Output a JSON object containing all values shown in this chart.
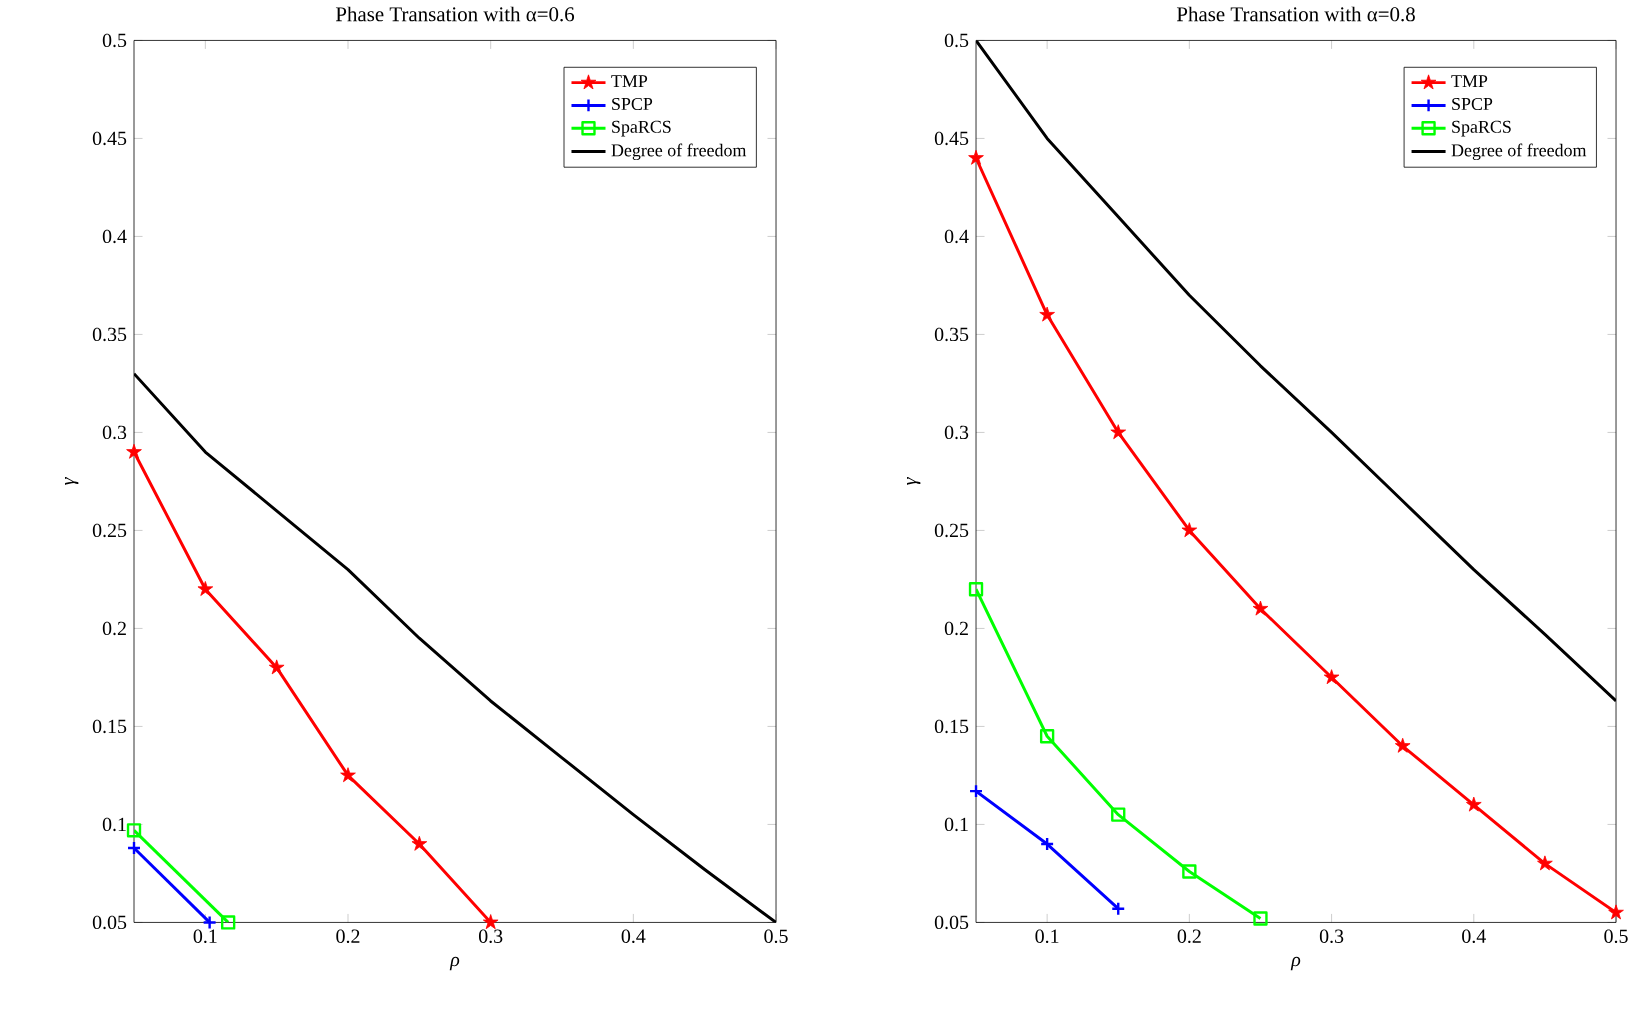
{
  "chart_data": [
    {
      "type": "line",
      "title": "Phase Transation with α=0.6",
      "xlabel": "ρ",
      "ylabel": "γ",
      "xlim": [
        0.05,
        0.5
      ],
      "ylim": [
        0.05,
        0.5
      ],
      "xticks": [
        0.1,
        0.2,
        0.3,
        0.4,
        0.5
      ],
      "yticks": [
        0.05,
        0.1,
        0.15,
        0.2,
        0.25,
        0.3,
        0.35,
        0.4,
        0.45,
        0.5
      ],
      "legend": "top right",
      "grid": false,
      "series": [
        {
          "name": "TMP",
          "color": "#ff0000",
          "marker": "star",
          "x": [
            0.05,
            0.1,
            0.15,
            0.2,
            0.25,
            0.3
          ],
          "values": [
            0.29,
            0.22,
            0.18,
            0.125,
            0.09,
            0.05
          ]
        },
        {
          "name": "SPCP",
          "color": "#0000ff",
          "marker": "cross",
          "x": [
            0.05,
            0.103
          ],
          "values": [
            0.088,
            0.05
          ]
        },
        {
          "name": "SpaRCS",
          "color": "#00ff00",
          "marker": "square",
          "x": [
            0.05,
            0.116
          ],
          "values": [
            0.097,
            0.05
          ]
        },
        {
          "name": "Degree of freedom",
          "color": "#000000",
          "marker": "none",
          "x": [
            0.05,
            0.1,
            0.15,
            0.2,
            0.25,
            0.3,
            0.35,
            0.4,
            0.45,
            0.5
          ],
          "values": [
            0.33,
            0.29,
            0.26,
            0.23,
            0.195,
            0.163,
            0.134,
            0.105,
            0.077,
            0.05
          ]
        }
      ]
    },
    {
      "type": "line",
      "title": "Phase Transation with α=0.8",
      "xlabel": "ρ",
      "ylabel": "γ",
      "xlim": [
        0.05,
        0.5
      ],
      "ylim": [
        0.05,
        0.5
      ],
      "xticks": [
        0.1,
        0.2,
        0.3,
        0.4,
        0.5
      ],
      "yticks": [
        0.05,
        0.1,
        0.15,
        0.2,
        0.25,
        0.3,
        0.35,
        0.4,
        0.45,
        0.5
      ],
      "legend": "top right",
      "grid": false,
      "series": [
        {
          "name": "TMP",
          "color": "#ff0000",
          "marker": "star",
          "x": [
            0.05,
            0.1,
            0.15,
            0.2,
            0.25,
            0.3,
            0.35,
            0.4,
            0.45,
            0.5
          ],
          "values": [
            0.44,
            0.36,
            0.3,
            0.25,
            0.21,
            0.175,
            0.14,
            0.11,
            0.08,
            0.055
          ]
        },
        {
          "name": "SPCP",
          "color": "#0000ff",
          "marker": "cross",
          "x": [
            0.05,
            0.1,
            0.15
          ],
          "values": [
            0.117,
            0.09,
            0.057
          ]
        },
        {
          "name": "SpaRCS",
          "color": "#00ff00",
          "marker": "square",
          "x": [
            0.05,
            0.1,
            0.15,
            0.2,
            0.25
          ],
          "values": [
            0.22,
            0.145,
            0.105,
            0.076,
            0.052
          ]
        },
        {
          "name": "Degree of freedom",
          "color": "#000000",
          "marker": "none",
          "x": [
            0.05,
            0.1,
            0.15,
            0.2,
            0.25,
            0.3,
            0.35,
            0.4,
            0.45,
            0.5
          ],
          "values": [
            0.5,
            0.45,
            0.41,
            0.37,
            0.334,
            0.3,
            0.265,
            0.23,
            0.197,
            0.163
          ]
        }
      ]
    }
  ]
}
